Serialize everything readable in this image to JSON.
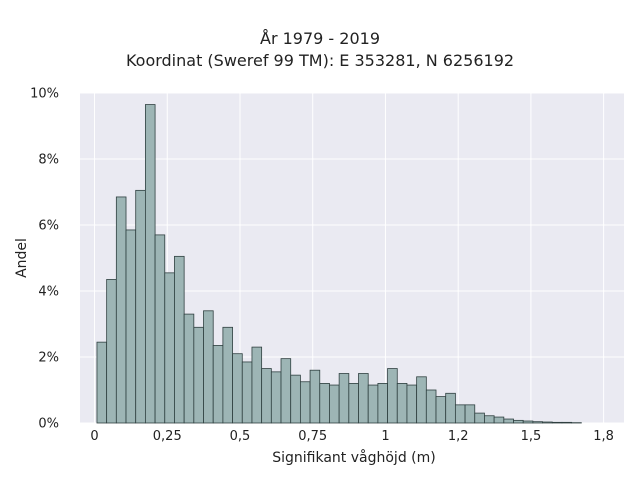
{
  "chart_data": {
    "type": "bar",
    "title": "År 1979 - 2019",
    "subtitle": "Koordinat (Sweref 99 TM): E 353281, N 6256192",
    "xlabel": "Signifikant våghöjd (m)",
    "ylabel": "Andel",
    "xlim": [
      -0.05,
      1.82
    ],
    "ylim": [
      0,
      10
    ],
    "x_ticks": [
      {
        "value": 0,
        "label": "0"
      },
      {
        "value": 0.25,
        "label": "0,25"
      },
      {
        "value": 0.5,
        "label": "0,5"
      },
      {
        "value": 0.75,
        "label": "0,75"
      },
      {
        "value": 1.0,
        "label": "1"
      },
      {
        "value": 1.25,
        "label": "1,2"
      },
      {
        "value": 1.5,
        "label": "1,5"
      },
      {
        "value": 1.75,
        "label": "1,8"
      }
    ],
    "y_ticks": [
      {
        "value": 0,
        "label": "0%"
      },
      {
        "value": 2,
        "label": "2%"
      },
      {
        "value": 4,
        "label": "4%"
      },
      {
        "value": 6,
        "label": "6%"
      },
      {
        "value": 8,
        "label": "8%"
      },
      {
        "value": 10,
        "label": "10%"
      }
    ],
    "bin_start": 0.0083,
    "bin_width": 0.0333,
    "values": [
      2.45,
      4.35,
      6.85,
      5.85,
      7.05,
      9.65,
      5.7,
      4.55,
      5.05,
      3.3,
      2.9,
      3.4,
      2.35,
      2.9,
      2.1,
      1.85,
      2.3,
      1.65,
      1.55,
      1.95,
      1.45,
      1.25,
      1.6,
      1.2,
      1.15,
      1.5,
      1.2,
      1.5,
      1.15,
      1.2,
      1.65,
      1.2,
      1.15,
      1.4,
      1.0,
      0.8,
      0.9,
      0.55,
      0.55,
      0.3,
      0.22,
      0.18,
      0.12,
      0.08,
      0.06,
      0.04,
      0.03,
      0.02,
      0.02,
      0.01
    ],
    "grid": true,
    "bar_color": "#9db5b5",
    "bar_edge_color": "#2f4040",
    "plot_background": "#eaeaf2",
    "grid_color": "#ffffff"
  }
}
